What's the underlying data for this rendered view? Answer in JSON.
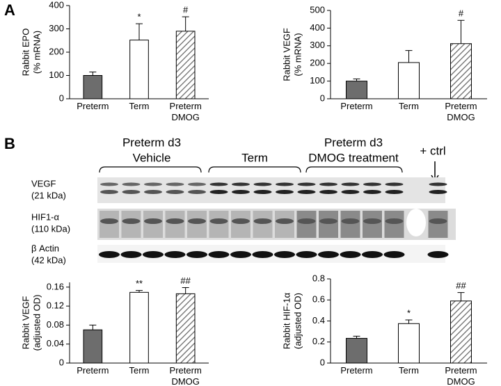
{
  "panel_labels": [
    "A",
    "B"
  ],
  "blot": {
    "groups": [
      [
        "Preterm d3",
        "Vehicle"
      ],
      [
        "Term"
      ],
      [
        "Preterm d3",
        "DMOG treatment"
      ],
      [
        "+ ctrl"
      ]
    ],
    "rows": [
      [
        "VEGF",
        "(21 kDa)"
      ],
      [
        "HIF1-α",
        "(110 kDa)"
      ],
      [
        "β Actin",
        "(42 kDa)"
      ]
    ]
  },
  "chart_data": [
    {
      "type": "bar",
      "ylabel": [
        "Rabbit EPO",
        "(% mRNA)"
      ],
      "categories": [
        "Preterm",
        "Term",
        "Preterm DMOG"
      ],
      "values": [
        100,
        252,
        290
      ],
      "errors": [
        15,
        70,
        62
      ],
      "annotations": [
        null,
        "*",
        "#"
      ],
      "fills": [
        "#6d6d6d",
        "#ffffff",
        "hatch"
      ],
      "ylim": [
        0,
        400
      ],
      "yticks": [
        0,
        100,
        200,
        300,
        400
      ]
    },
    {
      "type": "bar",
      "ylabel": [
        "Rabbit VEGF",
        "(% mRNA)"
      ],
      "categories": [
        "Preterm",
        "Term",
        "Preterm DMOG"
      ],
      "values": [
        100,
        205,
        312
      ],
      "errors": [
        12,
        68,
        132
      ],
      "annotations": [
        null,
        null,
        "#"
      ],
      "fills": [
        "#6d6d6d",
        "#ffffff",
        "hatch"
      ],
      "ylim": [
        0,
        500
      ],
      "yticks": [
        0,
        100,
        200,
        300,
        400,
        500
      ]
    },
    {
      "type": "bar",
      "ylabel": [
        "Rabbit VEGF",
        "(adjusted OD)"
      ],
      "categories": [
        "Preterm",
        "Term",
        "Preterm DMOG"
      ],
      "values": [
        0.07,
        0.149,
        0.146
      ],
      "errors": [
        0.01,
        0.004,
        0.013
      ],
      "annotations": [
        null,
        "**",
        "##"
      ],
      "fills": [
        "#6d6d6d",
        "#ffffff",
        "hatch"
      ],
      "ylim": [
        0,
        0.17
      ],
      "yticks": [
        0,
        0.04,
        0.08,
        0.12,
        0.16
      ]
    },
    {
      "type": "bar",
      "ylabel": [
        "Rabbit HIF-1α",
        "(adjusted OD)"
      ],
      "categories": [
        "Preterm",
        "Term",
        "Preterm DMOG"
      ],
      "values": [
        0.235,
        0.375,
        0.59
      ],
      "errors": [
        0.02,
        0.035,
        0.08
      ],
      "annotations": [
        null,
        "*",
        "##"
      ],
      "fills": [
        "#6d6d6d",
        "#ffffff",
        "hatch"
      ],
      "ylim": [
        0,
        0.8
      ],
      "yticks": [
        0,
        0.2,
        0.4,
        0.6,
        0.8
      ]
    }
  ]
}
